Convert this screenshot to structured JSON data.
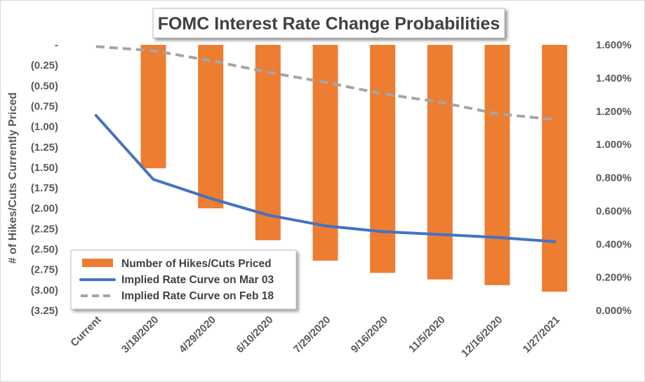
{
  "chart_data": {
    "type": "bar+line",
    "title": "FOMC Interest Rate Change Probabilities",
    "ylabel": "# of Hikes/Cuts Currently Priced",
    "y2label": "",
    "categories": [
      "Current",
      "3/18/2020",
      "4/29/2020",
      "6/10/2020",
      "7/29/2020",
      "9/16/2020",
      "11/5/2020",
      "12/16/2020",
      "1/27/2021"
    ],
    "left_axis": {
      "ylim": [
        -3.25,
        0
      ],
      "ticks": [
        0,
        -0.25,
        -0.5,
        -0.75,
        -1.0,
        -1.25,
        -1.5,
        -1.75,
        -2.0,
        -2.25,
        -2.5,
        -2.75,
        -3.0,
        -3.25
      ],
      "tick_labels": [
        "-",
        "(0.25)",
        "(0.50)",
        "(0.75)",
        "(1.00)",
        "(1.25)",
        "(1.50)",
        "(1.75)",
        "(2.00)",
        "(2.25)",
        "(2.50)",
        "(2.75)",
        "(3.00)",
        "(3.25)"
      ]
    },
    "right_axis": {
      "ylim": [
        0.0,
        1.6
      ],
      "ticks": [
        1.6,
        1.4,
        1.2,
        1.0,
        0.8,
        0.6,
        0.4,
        0.2,
        0.0
      ],
      "tick_labels": [
        "1.600%",
        "1.400%",
        "1.200%",
        "1.000%",
        "0.800%",
        "0.600%",
        "0.400%",
        "0.200%",
        "0.000%"
      ]
    },
    "series": [
      {
        "name": "Number of Hikes/Cuts Priced",
        "type": "bar",
        "axis": "left",
        "color": "#ED7D31",
        "values": [
          0,
          -1.51,
          -2.0,
          -2.39,
          -2.64,
          -2.79,
          -2.87,
          -2.94,
          -3.02
        ]
      },
      {
        "name": "Implied Rate Curve on Mar 03",
        "type": "line",
        "axis": "right",
        "color": "#4472C4",
        "dash": "solid",
        "values": [
          1.175,
          0.79,
          0.675,
          0.575,
          0.51,
          0.475,
          0.458,
          0.44,
          0.415
        ]
      },
      {
        "name": "Implied Rate Curve on Feb 18",
        "type": "line",
        "axis": "right",
        "color": "#A5A5A5",
        "dash": "dashed",
        "values": [
          1.59,
          1.565,
          1.505,
          1.435,
          1.375,
          1.305,
          1.255,
          1.185,
          1.15
        ]
      }
    ],
    "legend": {
      "placement": "bottom-left",
      "items": [
        "Number of Hikes/Cuts Priced",
        "Implied Rate Curve on Mar 03",
        "Implied Rate Curve on Feb 18"
      ]
    },
    "grid": false
  }
}
